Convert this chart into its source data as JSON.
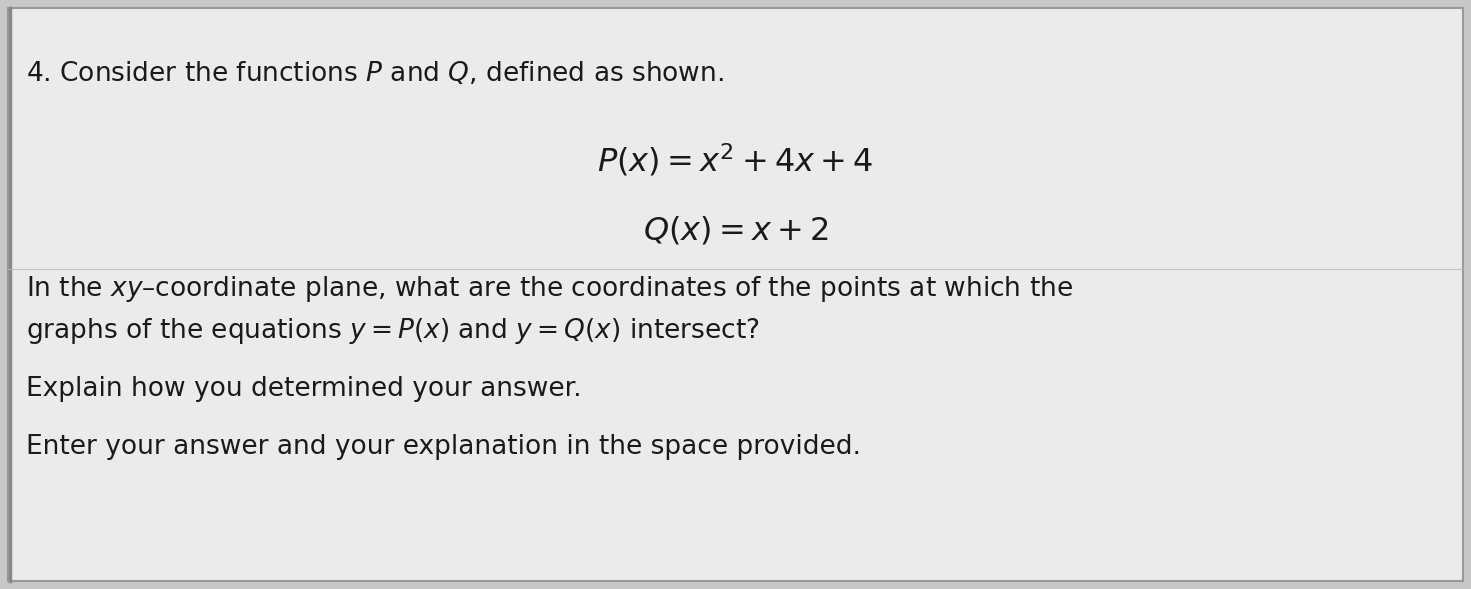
{
  "background_color": "#c8c8c8",
  "card_color": "#ebebeb",
  "border_color": "#999999",
  "text_color": "#1a1a1a",
  "heading": "4. Consider the functions $P$ and $Q$, defined as shown.",
  "formula_P": "$P(x) = x^{2} + 4x + 4$",
  "formula_Q": "$Q(x) = x + 2$",
  "body_line1": "In the $xy$–coordinate plane, what are the coordinates of the points at which the",
  "body_line2": "graphs of the equations $y = P(x)$ and $y = Q(x)$ intersect?",
  "body_line3": "Explain how you determined your answer.",
  "body_line4": "Enter your answer and your explanation in the space provided.",
  "font_size_heading": 19,
  "font_size_formula": 23,
  "font_size_body": 19,
  "fig_width": 14.71,
  "fig_height": 5.89
}
